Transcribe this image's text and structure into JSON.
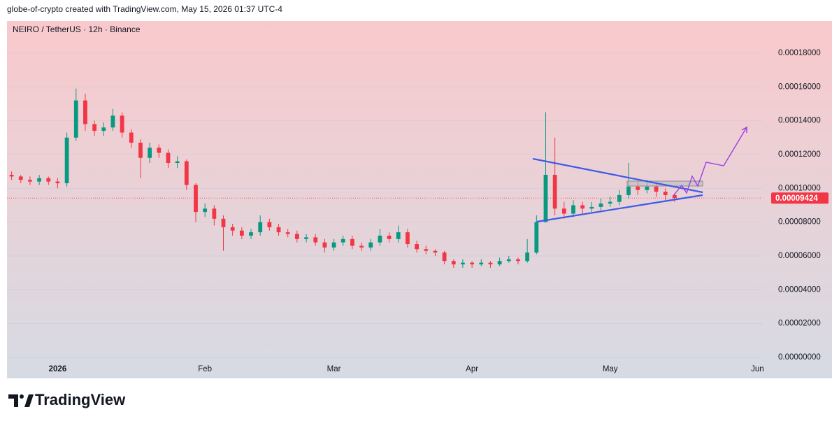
{
  "header": {
    "attribution": "globe-of-crypto created with TradingView.com, May 15, 2026 01:37 UTC-4"
  },
  "footer": {
    "brand": "TradingView"
  },
  "chart_data": {
    "type": "candlestick",
    "title": "NEIRO / TetherUS · 12h · Binance",
    "categories": [
      null,
      null,
      null,
      null,
      null,
      "2026",
      null,
      null,
      null,
      null,
      null,
      null,
      null,
      null,
      null,
      null,
      null,
      null,
      null,
      null,
      null,
      "Feb",
      null,
      null,
      null,
      null,
      null,
      null,
      null,
      null,
      null,
      null,
      null,
      null,
      null,
      "Mar",
      null,
      null,
      null,
      null,
      null,
      null,
      null,
      null,
      null,
      null,
      null,
      null,
      null,
      null,
      "Apr",
      null,
      null,
      null,
      null,
      null,
      null,
      null,
      null,
      null,
      null,
      null,
      null,
      null,
      null,
      "May",
      null,
      null,
      null,
      null,
      null,
      null,
      null,
      null,
      null,
      null,
      null,
      null,
      null,
      null,
      null,
      "Jun"
    ],
    "open": [
      0.000108,
      0.000107,
      0.000105,
      0.000104,
      0.000106,
      0.000104,
      0.000103,
      0.00013,
      0.000152,
      0.000138,
      0.000134,
      0.000136,
      0.000143,
      0.000133,
      0.000127,
      0.000118,
      0.000124,
      0.000121,
      0.000115,
      0.000116,
      0.000102,
      8.6e-05,
      8.8e-05,
      8.2e-05,
      7.7e-05,
      7.5e-05,
      7.2e-05,
      7.4e-05,
      8e-05,
      7.7e-05,
      7.4e-05,
      7.3e-05,
      7e-05,
      7.1e-05,
      6.8e-05,
      6.5e-05,
      6.8e-05,
      7e-05,
      6.6e-05,
      6.5e-05,
      6.8e-05,
      7.2e-05,
      7e-05,
      7.4e-05,
      6.7e-05,
      6.4e-05,
      6.3e-05,
      6.2e-05,
      5.7e-05,
      5.5e-05,
      5.6e-05,
      5.5e-05,
      5.6e-05,
      5.5e-05,
      5.7e-05,
      5.8e-05,
      5.7e-05,
      6.2e-05,
      8e-05,
      0.000108,
      8.8e-05,
      8.5e-05,
      9e-05,
      8.8e-05,
      8.9e-05,
      9.1e-05,
      9.2e-05,
      9.6e-05,
      0.000101,
      9.9e-05,
      0.000101,
      9.8e-05,
      9.6e-05,
      null,
      null,
      null,
      null,
      null,
      null,
      null,
      null,
      null
    ],
    "high": [
      0.00011,
      0.000108,
      0.000107,
      0.000108,
      0.000107,
      0.000106,
      0.000133,
      0.000159,
      0.000156,
      0.00014,
      0.000139,
      0.000147,
      0.000145,
      0.000135,
      0.000129,
      0.000127,
      0.000126,
      0.000123,
      0.000119,
      0.000117,
      0.000103,
      9.1e-05,
      9e-05,
      8.4e-05,
      7.9e-05,
      7.7e-05,
      7.6e-05,
      8.4e-05,
      8.2e-05,
      7.9e-05,
      7.6e-05,
      7.5e-05,
      7.3e-05,
      7.3e-05,
      7e-05,
      7e-05,
      7.2e-05,
      7.2e-05,
      6.8e-05,
      7e-05,
      7.6e-05,
      7.4e-05,
      7.8e-05,
      7.6e-05,
      6.9e-05,
      6.6e-05,
      6.4e-05,
      6.3e-05,
      5.8e-05,
      5.8e-05,
      5.7e-05,
      5.8e-05,
      5.7e-05,
      5.9e-05,
      6e-05,
      5.9e-05,
      7e-05,
      8.4e-05,
      0.000145,
      0.00013,
      9.2e-05,
      9.3e-05,
      9.2e-05,
      9.2e-05,
      9.4e-05,
      9.5e-05,
      9.9e-05,
      0.000115,
      0.000104,
      0.000105,
      0.000103,
      0.0001,
      9.7e-05,
      null,
      null,
      null,
      null,
      null,
      null,
      null,
      null,
      null
    ],
    "low": [
      0.000105,
      0.000103,
      0.000102,
      0.000102,
      0.000102,
      0.0001,
      0.000101,
      0.000128,
      0.000134,
      0.000131,
      0.000131,
      0.000134,
      0.00013,
      0.000124,
      0.000106,
      0.000115,
      0.000118,
      0.000112,
      0.000112,
      9.9e-05,
      8e-05,
      8.3e-05,
      7.8e-05,
      6.3e-05,
      7.2e-05,
      7e-05,
      7e-05,
      7.2e-05,
      7.5e-05,
      7.2e-05,
      7.1e-05,
      6.8e-05,
      6.8e-05,
      6.6e-05,
      6.2e-05,
      6.3e-05,
      6.6e-05,
      6.4e-05,
      6.3e-05,
      6.3e-05,
      6.6e-05,
      6.8e-05,
      6.8e-05,
      6.5e-05,
      6.2e-05,
      6.1e-05,
      6e-05,
      5.5e-05,
      5.3e-05,
      5.3e-05,
      5.3e-05,
      5.4e-05,
      5.3e-05,
      5.4e-05,
      5.6e-05,
      5.5e-05,
      5.6e-05,
      6.1e-05,
      8e-05,
      8.4e-05,
      8.2e-05,
      8.3e-05,
      8.5e-05,
      8.6e-05,
      8.7e-05,
      8.9e-05,
      9e-05,
      9.4e-05,
      9.6e-05,
      9.7e-05,
      9.5e-05,
      9.3e-05,
      9.2e-05,
      null,
      null,
      null,
      null,
      null,
      null,
      null,
      null,
      null
    ],
    "close": [
      0.000107,
      0.000105,
      0.000104,
      0.000106,
      0.000104,
      0.000103,
      0.00013,
      0.000152,
      0.000138,
      0.000134,
      0.000136,
      0.000143,
      0.000133,
      0.000127,
      0.000118,
      0.000124,
      0.000121,
      0.000115,
      0.000116,
      0.000102,
      8.6e-05,
      8.8e-05,
      8.2e-05,
      7.7e-05,
      7.5e-05,
      7.2e-05,
      7.4e-05,
      8e-05,
      7.7e-05,
      7.4e-05,
      7.3e-05,
      7e-05,
      7.1e-05,
      6.8e-05,
      6.5e-05,
      6.8e-05,
      7e-05,
      6.6e-05,
      6.5e-05,
      6.8e-05,
      7.2e-05,
      7e-05,
      7.4e-05,
      6.7e-05,
      6.4e-05,
      6.3e-05,
      6.2e-05,
      5.7e-05,
      5.5e-05,
      5.6e-05,
      5.5e-05,
      5.6e-05,
      5.5e-05,
      5.7e-05,
      5.8e-05,
      5.7e-05,
      6.2e-05,
      8e-05,
      0.000108,
      8.8e-05,
      8.5e-05,
      9e-05,
      8.8e-05,
      8.9e-05,
      9.1e-05,
      9.2e-05,
      9.6e-05,
      0.000101,
      9.9e-05,
      0.000101,
      9.8e-05,
      9.6e-05,
      9.424e-05,
      null,
      null,
      null,
      null,
      null,
      null,
      null,
      null,
      null
    ],
    "up_color": "#089981",
    "down_color": "#f23645",
    "last_price": 9.424e-05,
    "last_price_color": "#f23645",
    "ylim": [
      0,
      0.000199
    ],
    "yticks": [
      {
        "value": 0,
        "label": "0.00000000"
      },
      {
        "value": 2e-05,
        "label": "0.00002000"
      },
      {
        "value": 4e-05,
        "label": "0.00004000"
      },
      {
        "value": 6e-05,
        "label": "0.00006000"
      },
      {
        "value": 8e-05,
        "label": "0.00008000"
      },
      {
        "value": 0.0001,
        "label": "0.00010000"
      },
      {
        "value": 0.00012,
        "label": "0.00012000"
      },
      {
        "value": 0.00014,
        "label": "0.00014000"
      },
      {
        "value": 0.00016,
        "label": "0.00016000"
      },
      {
        "value": 0.00018,
        "label": "0.00018000"
      }
    ],
    "grid": true
  }
}
